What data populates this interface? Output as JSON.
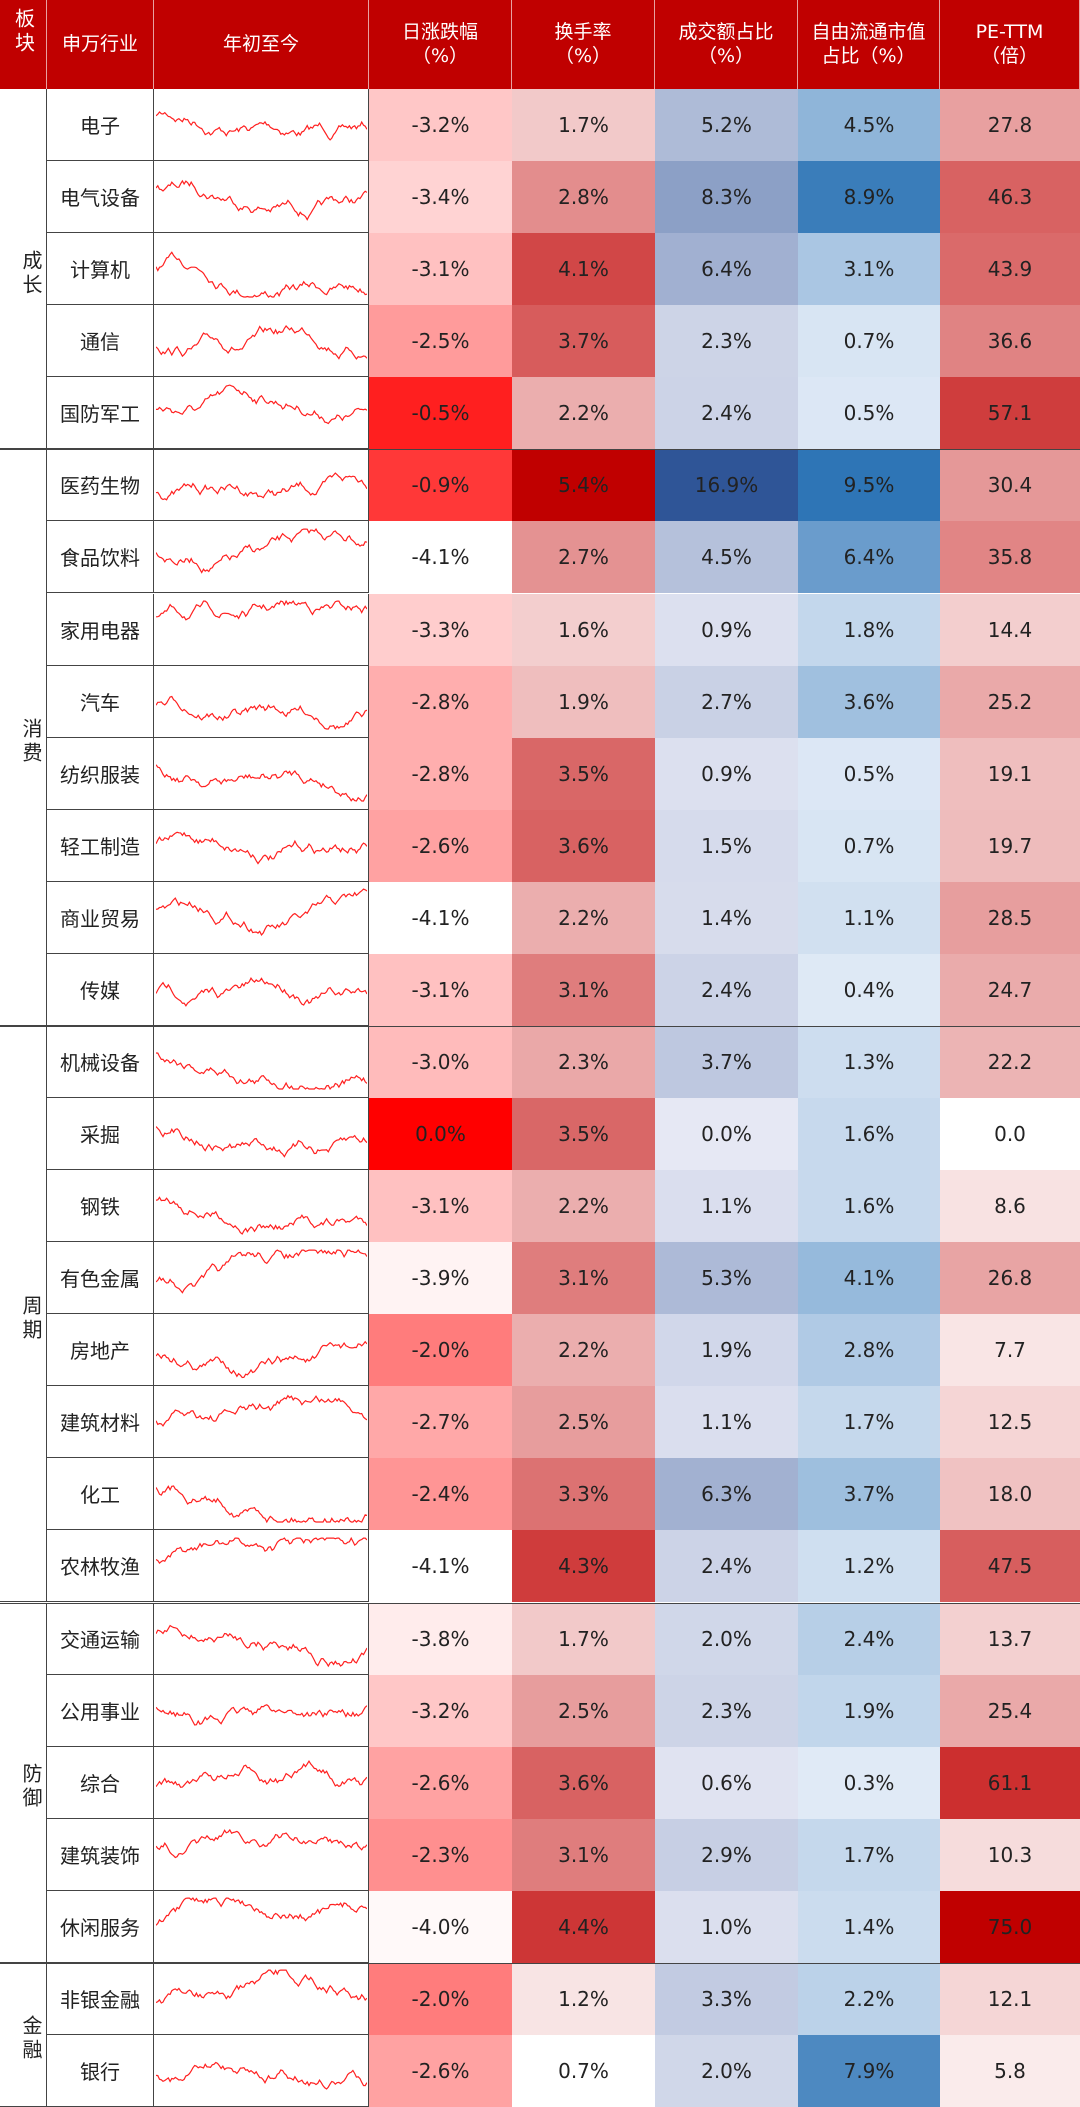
{
  "header": {
    "group": "板块",
    "industry": "申万行业",
    "trend": "年初至今",
    "columns": [
      {
        "lines": [
          "日涨跌幅",
          "（%）"
        ],
        "scale": [
          "#ffffff",
          "#ff0000"
        ]
      },
      {
        "lines": [
          "换手率",
          "（%）"
        ],
        "scale": [
          "#ffffff",
          "#c00000"
        ]
      },
      {
        "lines": [
          "成交额占比",
          "（%）"
        ],
        "scale": [
          "#e6e8f4",
          "#2f5597"
        ]
      },
      {
        "lines": [
          "自由流通市值",
          "占比（%）"
        ],
        "scale": [
          "#e0eaf6",
          "#2e75b6"
        ]
      },
      {
        "lines": [
          "PE-TTM",
          "（倍）"
        ],
        "scale": [
          "#ffffff",
          "#c00000"
        ]
      }
    ]
  },
  "groups": [
    {
      "name": "成长",
      "rows": [
        {
          "industry": "电子",
          "cells": [
            "-3.2%",
            "1.7%",
            "5.2%",
            "4.5%",
            "27.8"
          ]
        },
        {
          "industry": "电气设备",
          "cells": [
            "-3.4%",
            "2.8%",
            "8.3%",
            "8.9%",
            "46.3"
          ]
        },
        {
          "industry": "计算机",
          "cells": [
            "-3.1%",
            "4.1%",
            "6.4%",
            "3.1%",
            "43.9"
          ]
        },
        {
          "industry": "通信",
          "cells": [
            "-2.5%",
            "3.7%",
            "2.3%",
            "0.7%",
            "36.6"
          ]
        },
        {
          "industry": "国防军工",
          "cells": [
            "-0.5%",
            "2.2%",
            "2.4%",
            "0.5%",
            "57.1"
          ]
        }
      ]
    },
    {
      "name": "消费",
      "rows": [
        {
          "industry": "医药生物",
          "cells": [
            "-0.9%",
            "5.4%",
            "16.9%",
            "9.5%",
            "30.4"
          ]
        },
        {
          "industry": "食品饮料",
          "cells": [
            "-4.1%",
            "2.7%",
            "4.5%",
            "6.4%",
            "35.8"
          ]
        },
        {
          "industry": "家用电器",
          "cells": [
            "-3.3%",
            "1.6%",
            "0.9%",
            "1.8%",
            "14.4"
          ]
        },
        {
          "industry": "汽车",
          "cells": [
            "-2.8%",
            "1.9%",
            "2.7%",
            "3.6%",
            "25.2"
          ]
        },
        {
          "industry": "纺织服装",
          "cells": [
            "-2.8%",
            "3.5%",
            "0.9%",
            "0.5%",
            "19.1"
          ]
        },
        {
          "industry": "轻工制造",
          "cells": [
            "-2.6%",
            "3.6%",
            "1.5%",
            "0.7%",
            "19.7"
          ]
        },
        {
          "industry": "商业贸易",
          "cells": [
            "-4.1%",
            "2.2%",
            "1.4%",
            "1.1%",
            "28.5"
          ]
        },
        {
          "industry": "传媒",
          "cells": [
            "-3.1%",
            "3.1%",
            "2.4%",
            "0.4%",
            "24.7"
          ]
        }
      ]
    },
    {
      "name": "周期",
      "rows": [
        {
          "industry": "机械设备",
          "cells": [
            "-3.0%",
            "2.3%",
            "3.7%",
            "1.3%",
            "22.2"
          ]
        },
        {
          "industry": "采掘",
          "cells": [
            "0.0%",
            "3.5%",
            "0.0%",
            "1.6%",
            "0.0"
          ]
        },
        {
          "industry": "钢铁",
          "cells": [
            "-3.1%",
            "2.2%",
            "1.1%",
            "1.6%",
            "8.6"
          ]
        },
        {
          "industry": "有色金属",
          "cells": [
            "-3.9%",
            "3.1%",
            "5.3%",
            "4.1%",
            "26.8"
          ]
        },
        {
          "industry": "房地产",
          "cells": [
            "-2.0%",
            "2.2%",
            "1.9%",
            "2.8%",
            "7.7"
          ]
        },
        {
          "industry": "建筑材料",
          "cells": [
            "-2.7%",
            "2.5%",
            "1.1%",
            "1.7%",
            "12.5"
          ]
        },
        {
          "industry": "化工",
          "cells": [
            "-2.4%",
            "3.3%",
            "6.3%",
            "3.7%",
            "18.0"
          ]
        },
        {
          "industry": "农林牧渔",
          "cells": [
            "-4.1%",
            "4.3%",
            "2.4%",
            "1.2%",
            "47.5"
          ]
        }
      ]
    },
    {
      "name": "防御",
      "rows": [
        {
          "industry": "交通运输",
          "cells": [
            "-3.8%",
            "1.7%",
            "2.0%",
            "2.4%",
            "13.7"
          ]
        },
        {
          "industry": "公用事业",
          "cells": [
            "-3.2%",
            "2.5%",
            "2.3%",
            "1.9%",
            "25.4"
          ]
        },
        {
          "industry": "综合",
          "cells": [
            "-2.6%",
            "3.6%",
            "0.6%",
            "0.3%",
            "61.1"
          ]
        },
        {
          "industry": "建筑装饰",
          "cells": [
            "-2.3%",
            "3.1%",
            "2.9%",
            "1.7%",
            "10.3"
          ]
        },
        {
          "industry": "休闲服务",
          "cells": [
            "-4.0%",
            "4.4%",
            "1.0%",
            "1.4%",
            "75.0"
          ]
        }
      ]
    },
    {
      "name": "金融",
      "rows": [
        {
          "industry": "非银金融",
          "cells": [
            "-2.0%",
            "1.2%",
            "3.3%",
            "2.2%",
            "12.1"
          ]
        },
        {
          "industry": "银行",
          "cells": [
            "-2.6%",
            "0.7%",
            "2.0%",
            "7.9%",
            "5.8"
          ]
        }
      ]
    }
  ]
}
